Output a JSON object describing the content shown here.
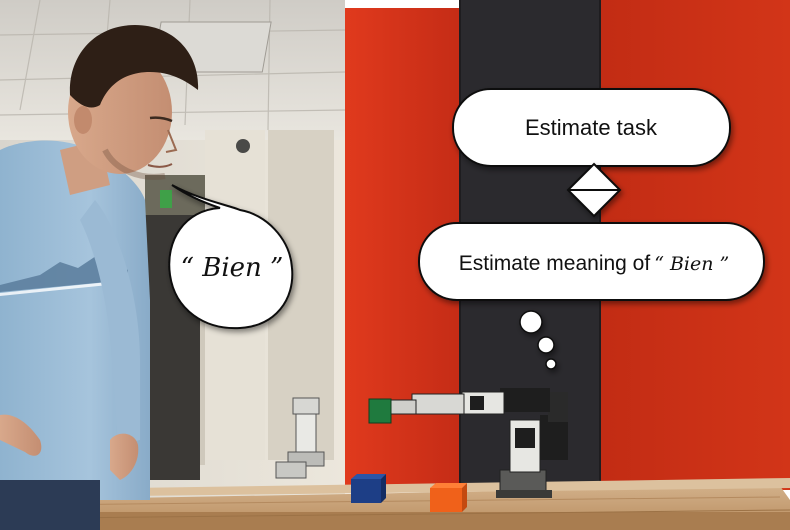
{
  "photo_bubble": {
    "speech": "“ Bien ”"
  },
  "diagram": {
    "top_box": "Estimate task",
    "bottom_box_prefix": "Estimate meaning of",
    "bottom_box_word": "“ Bien ”"
  },
  "colors": {
    "wall_red": "#d8321a",
    "wall_dark": "#2b2a2e",
    "table_wood": "#c9a47a",
    "blue_cube": "#1d3e86",
    "orange_cube": "#f0611a",
    "shirt": "#9fbfd8"
  }
}
